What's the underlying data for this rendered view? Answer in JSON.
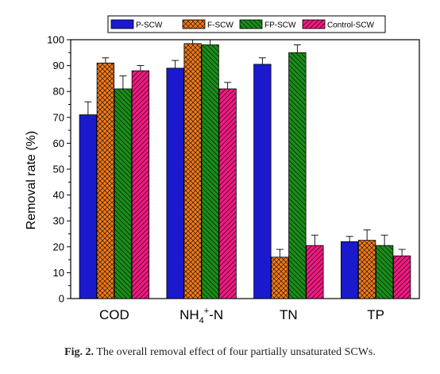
{
  "chart_data": {
    "type": "bar",
    "ylabel": "Removal rate (%)",
    "ylim": [
      0,
      100
    ],
    "yticks": [
      0,
      10,
      20,
      30,
      40,
      50,
      60,
      70,
      80,
      90,
      100
    ],
    "categories": [
      "COD",
      "NH4+-N",
      "TN",
      "TP"
    ],
    "category_parts": [
      {
        "main": "COD",
        "sub": "",
        "sup": "",
        "rest": ""
      },
      {
        "main": "NH",
        "sub": "4",
        "sup": "+",
        "rest": "-N"
      },
      {
        "main": "TN",
        "sub": "",
        "sup": "",
        "rest": ""
      },
      {
        "main": "TP",
        "sub": "",
        "sup": "",
        "rest": ""
      }
    ],
    "series": [
      {
        "name": "P-SCW",
        "color": "#1a1acc",
        "pattern": "solid",
        "values": [
          71,
          89,
          90.5,
          22
        ],
        "errors": [
          5,
          3,
          2.5,
          2
        ]
      },
      {
        "name": "F-SCW",
        "color": "#f07a1a",
        "pattern": "crosshatch",
        "values": [
          91,
          98.5,
          16,
          22.5
        ],
        "errors": [
          2,
          1.5,
          3,
          4
        ]
      },
      {
        "name": "FP-SCW",
        "color": "#1a8c1a",
        "pattern": "backslash",
        "values": [
          81,
          98,
          95,
          20.5
        ],
        "errors": [
          5,
          2,
          3,
          4
        ]
      },
      {
        "name": "Control-SCW",
        "color": "#ee1a80",
        "pattern": "slash",
        "values": [
          88,
          81,
          20.5,
          16.5
        ],
        "errors": [
          2,
          2.5,
          4,
          2.5
        ]
      }
    ],
    "legend_position": "top"
  },
  "caption": {
    "label": "Fig. 2.",
    "text": "The overall removal effect of four partially unsaturated SCWs."
  }
}
